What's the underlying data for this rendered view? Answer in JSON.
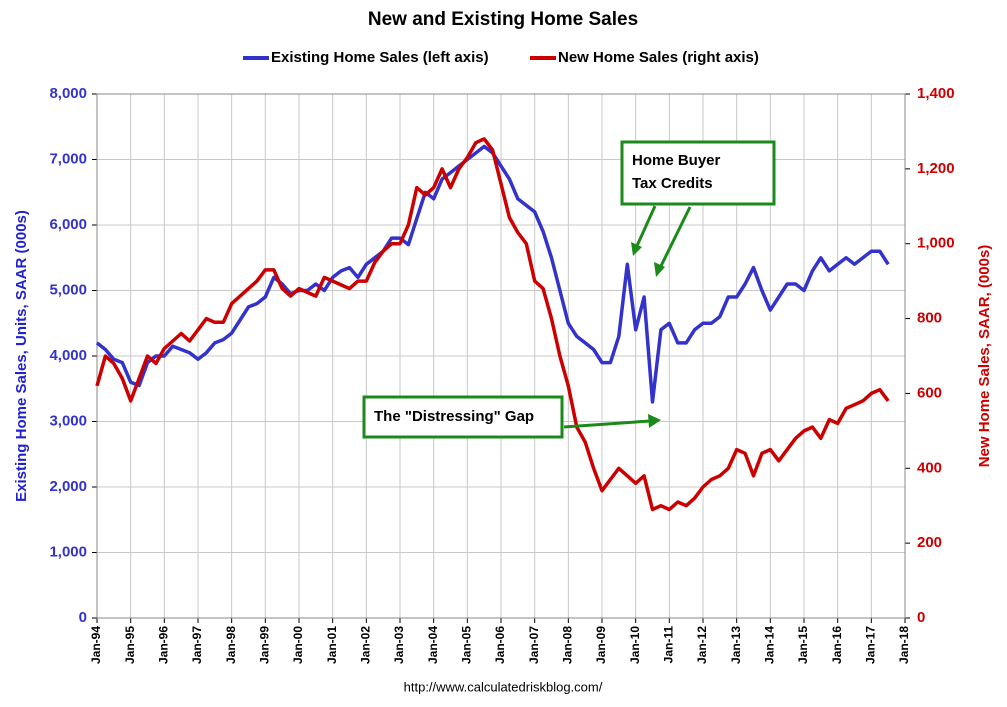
{
  "chart_data": {
    "type": "line",
    "title": "New and Existing Home Sales",
    "y_label": "Existing Home Sales, Units, SAAR (000s)",
    "y2_label": "New Home Sales, SAAR, (000s)",
    "source": "http://www.calculatedriskblog.com/",
    "annotations": [
      {
        "lines": [
          "Home Buyer",
          "Tax Credits"
        ]
      },
      {
        "lines": [
          "The \"Distressing\" Gap"
        ]
      }
    ],
    "grid": true,
    "legend": "top",
    "xlim": [
      1994,
      2018
    ],
    "xticks": [
      {
        "value": 1994,
        "label": "Jan-94"
      },
      {
        "value": 1995,
        "label": "Jan-95"
      },
      {
        "value": 1996,
        "label": "Jan-96"
      },
      {
        "value": 1997,
        "label": "Jan-97"
      },
      {
        "value": 1998,
        "label": "Jan-98"
      },
      {
        "value": 1999,
        "label": "Jan-99"
      },
      {
        "value": 2000,
        "label": "Jan-00"
      },
      {
        "value": 2001,
        "label": "Jan-01"
      },
      {
        "value": 2002,
        "label": "Jan-02"
      },
      {
        "value": 2003,
        "label": "Jan-03"
      },
      {
        "value": 2004,
        "label": "Jan-04"
      },
      {
        "value": 2005,
        "label": "Jan-05"
      },
      {
        "value": 2006,
        "label": "Jan-06"
      },
      {
        "value": 2007,
        "label": "Jan-07"
      },
      {
        "value": 2008,
        "label": "Jan-08"
      },
      {
        "value": 2009,
        "label": "Jan-09"
      },
      {
        "value": 2010,
        "label": "Jan-10"
      },
      {
        "value": 2011,
        "label": "Jan-11"
      },
      {
        "value": 2012,
        "label": "Jan-12"
      },
      {
        "value": 2013,
        "label": "Jan-13"
      },
      {
        "value": 2014,
        "label": "Jan-14"
      },
      {
        "value": 2015,
        "label": "Jan-15"
      },
      {
        "value": 2016,
        "label": "Jan-16"
      },
      {
        "value": 2017,
        "label": "Jan-17"
      },
      {
        "value": 2018,
        "label": "Jan-18"
      }
    ],
    "ylim": [
      0,
      8000
    ],
    "yticks": [
      0,
      {
        "value": 1000,
        "label": "1,000"
      },
      {
        "value": 2000,
        "label": "2,000"
      },
      {
        "value": 3000,
        "label": "3,000"
      },
      {
        "value": 4000,
        "label": "4,000"
      },
      {
        "value": 5000,
        "label": "5,000"
      },
      {
        "value": 6000,
        "label": "6,000"
      },
      {
        "value": 7000,
        "label": "7,000"
      },
      {
        "value": 8000,
        "label": "8,000"
      }
    ],
    "y2lim": [
      0,
      1400
    ],
    "y2ticks": [
      0,
      200,
      400,
      600,
      800,
      {
        "value": 1000,
        "label": "1,000"
      },
      {
        "value": 1200,
        "label": "1,200"
      },
      {
        "value": 1400,
        "label": "1,400"
      }
    ],
    "x": [
      1994,
      1994.25,
      1994.5,
      1994.75,
      1995,
      1995.25,
      1995.5,
      1995.75,
      1996,
      1996.25,
      1996.5,
      1996.75,
      1997,
      1997.25,
      1997.5,
      1997.75,
      1998,
      1998.25,
      1998.5,
      1998.75,
      1999,
      1999.25,
      1999.5,
      1999.75,
      2000,
      2000.25,
      2000.5,
      2000.75,
      2001,
      2001.25,
      2001.5,
      2001.75,
      2002,
      2002.25,
      2002.5,
      2002.75,
      2003,
      2003.25,
      2003.5,
      2003.75,
      2004,
      2004.25,
      2004.5,
      2004.75,
      2005,
      2005.25,
      2005.5,
      2005.75,
      2006,
      2006.25,
      2006.5,
      2006.75,
      2007,
      2007.25,
      2007.5,
      2007.75,
      2008,
      2008.25,
      2008.5,
      2008.75,
      2009,
      2009.25,
      2009.5,
      2009.75,
      2010,
      2010.25,
      2010.5,
      2010.75,
      2011,
      2011.25,
      2011.5,
      2011.75,
      2012,
      2012.25,
      2012.5,
      2012.75,
      2013,
      2013.25,
      2013.5,
      2013.75,
      2014,
      2014.25,
      2014.5,
      2014.75,
      2015,
      2015.25,
      2015.5,
      2015.75,
      2016,
      2016.25,
      2016.5,
      2016.75,
      2017,
      2017.25,
      2017.5
    ],
    "series": [
      {
        "name": "Existing Home Sales (left axis)",
        "color": "#3333cc",
        "axis": "y",
        "values": [
          4200,
          4100,
          3950,
          3900,
          3600,
          3550,
          3900,
          4000,
          4000,
          4150,
          4100,
          4050,
          3950,
          4050,
          4200,
          4250,
          4350,
          4550,
          4750,
          4800,
          4900,
          5200,
          5100,
          4950,
          5000,
          5000,
          5100,
          5000,
          5200,
          5300,
          5350,
          5200,
          5400,
          5500,
          5600,
          5800,
          5800,
          5700,
          6100,
          6500,
          6400,
          6700,
          6800,
          6900,
          7000,
          7100,
          7200,
          7100,
          6900,
          6700,
          6400,
          6300,
          6200,
          5900,
          5500,
          5000,
          4500,
          4300,
          4200,
          4100,
          3900,
          3900,
          4300,
          5400,
          4400,
          4900,
          3300,
          4400,
          4500,
          4200,
          4200,
          4400,
          4500,
          4500,
          4600,
          4900,
          4900,
          5100,
          5350,
          5000,
          4700,
          4900,
          5100,
          5100,
          5000,
          5300,
          5500,
          5300,
          5400,
          5500,
          5400,
          5500,
          5600,
          5600,
          5400
        ]
      },
      {
        "name": "New Home Sales (right axis)",
        "color": "#cc0000",
        "axis": "y2",
        "values": [
          620,
          700,
          680,
          640,
          580,
          640,
          700,
          680,
          720,
          740,
          760,
          740,
          770,
          800,
          790,
          790,
          840,
          860,
          880,
          900,
          930,
          930,
          880,
          860,
          880,
          870,
          860,
          910,
          900,
          890,
          880,
          900,
          900,
          950,
          980,
          1000,
          1000,
          1050,
          1150,
          1130,
          1150,
          1200,
          1150,
          1200,
          1230,
          1270,
          1280,
          1250,
          1160,
          1070,
          1030,
          1000,
          900,
          880,
          800,
          700,
          620,
          510,
          470,
          400,
          340,
          370,
          400,
          380,
          360,
          380,
          290,
          300,
          290,
          310,
          300,
          320,
          350,
          370,
          380,
          400,
          450,
          440,
          380,
          440,
          450,
          420,
          450,
          480,
          500,
          510,
          480,
          530,
          520,
          560,
          570,
          580,
          600,
          610,
          580
        ]
      }
    ]
  }
}
